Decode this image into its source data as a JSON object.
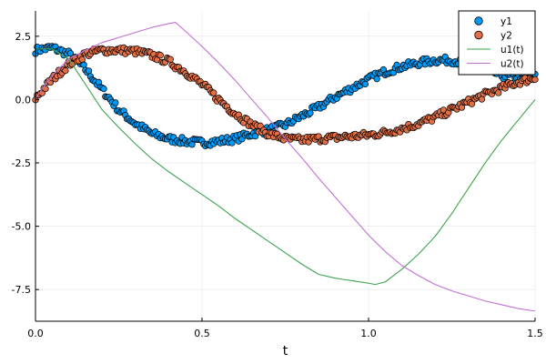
{
  "chart_data": {
    "type": "scatter",
    "title": "",
    "xlabel": "t",
    "ylabel": "",
    "xlim": [
      0,
      1.5
    ],
    "ylim": [
      -8.75,
      3.5
    ],
    "xticks": [
      0.0,
      0.5,
      1.0,
      1.5
    ],
    "xtick_labels": [
      "0.0",
      "0.5",
      "1.0",
      "1.5"
    ],
    "yticks": [
      2.5,
      0.0,
      -2.5,
      -5.0,
      -7.5
    ],
    "ytick_labels": [
      "2.5",
      "0.0",
      "-2.5",
      "-5.0",
      "-7.5"
    ],
    "grid": true,
    "legend_position": "top-right",
    "series": [
      {
        "name": "y1",
        "kind": "scatter",
        "color": "#009af9",
        "x": [
          0.0,
          0.05,
          0.1,
          0.15,
          0.2,
          0.25,
          0.3,
          0.35,
          0.4,
          0.45,
          0.5,
          0.55,
          0.6,
          0.65,
          0.7,
          0.75,
          0.8,
          0.85,
          0.9,
          0.95,
          1.0,
          1.05,
          1.1,
          1.15,
          1.2,
          1.25,
          1.3,
          1.35,
          1.4,
          1.45,
          1.5
        ],
        "y": [
          1.95,
          2.05,
          1.8,
          1.2,
          0.4,
          -0.4,
          -0.95,
          -1.35,
          -1.55,
          -1.65,
          -1.7,
          -1.65,
          -1.55,
          -1.35,
          -1.2,
          -1.0,
          -0.65,
          -0.3,
          0.1,
          0.45,
          0.8,
          1.1,
          1.3,
          1.45,
          1.55,
          1.55,
          1.4,
          1.2,
          0.95,
          0.9,
          0.9
        ]
      },
      {
        "name": "y2",
        "kind": "scatter",
        "color": "#e26f46",
        "x": [
          0.0,
          0.05,
          0.1,
          0.15,
          0.2,
          0.25,
          0.3,
          0.35,
          0.4,
          0.45,
          0.5,
          0.55,
          0.6,
          0.65,
          0.7,
          0.75,
          0.8,
          0.85,
          0.9,
          0.95,
          1.0,
          1.05,
          1.1,
          1.15,
          1.2,
          1.25,
          1.3,
          1.35,
          1.4,
          1.45,
          1.5
        ],
        "y": [
          0.05,
          0.8,
          1.4,
          1.8,
          1.95,
          1.95,
          1.9,
          1.75,
          1.5,
          1.1,
          0.6,
          0.0,
          -0.55,
          -1.0,
          -1.35,
          -1.55,
          -1.6,
          -1.55,
          -1.5,
          -1.45,
          -1.4,
          -1.3,
          -1.15,
          -0.95,
          -0.7,
          -0.4,
          -0.1,
          0.2,
          0.45,
          0.7,
          0.85
        ]
      },
      {
        "name": "u1(t)",
        "kind": "line",
        "color": "#3da44d",
        "x": [
          0.0,
          0.05,
          0.1,
          0.15,
          0.2,
          0.25,
          0.3,
          0.35,
          0.4,
          0.45,
          0.5,
          0.55,
          0.6,
          0.65,
          0.7,
          0.75,
          0.8,
          0.85,
          0.9,
          0.95,
          1.0,
          1.02,
          1.05,
          1.1,
          1.15,
          1.2,
          1.25,
          1.3,
          1.35,
          1.4,
          1.45,
          1.5
        ],
        "y": [
          2.0,
          2.0,
          1.6,
          0.6,
          -0.4,
          -1.1,
          -1.75,
          -2.35,
          -2.85,
          -3.3,
          -3.75,
          -4.2,
          -4.7,
          -5.15,
          -5.6,
          -6.05,
          -6.5,
          -6.9,
          -7.05,
          -7.15,
          -7.25,
          -7.3,
          -7.2,
          -6.7,
          -6.1,
          -5.4,
          -4.5,
          -3.5,
          -2.5,
          -1.6,
          -0.8,
          0.0
        ]
      },
      {
        "name": "u2(t)",
        "kind": "line",
        "color": "#c271d2",
        "x": [
          0.0,
          0.05,
          0.1,
          0.15,
          0.2,
          0.25,
          0.3,
          0.35,
          0.4,
          0.42,
          0.45,
          0.5,
          0.55,
          0.6,
          0.65,
          0.7,
          0.75,
          0.8,
          0.85,
          0.9,
          0.95,
          1.0,
          1.05,
          1.1,
          1.15,
          1.2,
          1.25,
          1.3,
          1.35,
          1.4,
          1.45,
          1.5
        ],
        "y": [
          0.05,
          0.95,
          1.6,
          1.95,
          2.25,
          2.45,
          2.65,
          2.85,
          3.0,
          3.05,
          2.7,
          2.1,
          1.45,
          0.75,
          0.0,
          -0.75,
          -1.55,
          -2.3,
          -3.1,
          -3.85,
          -4.6,
          -5.35,
          -6.0,
          -6.55,
          -6.95,
          -7.3,
          -7.55,
          -7.75,
          -7.95,
          -8.1,
          -8.25,
          -8.35
        ]
      }
    ]
  }
}
